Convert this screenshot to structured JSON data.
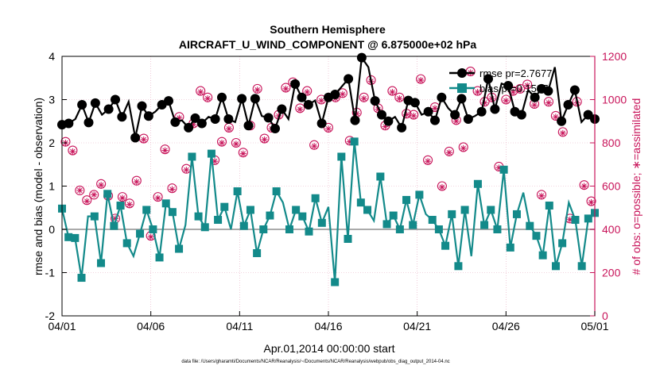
{
  "chart_data": {
    "type": "line",
    "title": "Southern Hemisphere",
    "subtitle": "AIRCRAFT_U_WIND_COMPONENT @ 6.875000e+02 hPa",
    "xlabel": "Apr.01,2014 00:00:00 start",
    "ylabel": "rmse and bias (model - observation)",
    "y2label": "# of obs: o=possible; ∗=assimilated",
    "footnote": "data file: /Users/gharamti/Documents/NCAR/Reanalysis/~/Documents/NCAR/Reanalysis/webpub/obs_diag_output_2014-04.nc",
    "xlim": [
      0,
      30
    ],
    "ylim": [
      -2,
      4
    ],
    "y2lim": [
      0,
      1200
    ],
    "x_ticks": [
      0,
      5,
      10,
      15,
      20,
      25,
      30
    ],
    "x_tick_labels": [
      "04/01",
      "04/06",
      "04/11",
      "04/16",
      "04/21",
      "04/26",
      "05/01"
    ],
    "y_ticks": [
      -2,
      -1,
      0,
      1,
      2,
      3,
      4
    ],
    "y2_ticks": [
      0,
      200,
      400,
      600,
      800,
      1000,
      1200
    ],
    "grid": true,
    "legend_position": "top-right",
    "colors": {
      "rmse": "#000000",
      "bias": "#138a8a",
      "obs": "#c8145a",
      "zero_line": "#aaaaaa",
      "grid": "#e6a9c0"
    },
    "series": [
      {
        "name": "rmse pr=2.7677",
        "axis": "left",
        "marker": "circle",
        "values": [
          2.42,
          2.45,
          2.55,
          2.88,
          2.47,
          2.92,
          2.65,
          2.78,
          3.0,
          2.6,
          2.95,
          2.12,
          2.85,
          2.62,
          2.72,
          2.88,
          2.97,
          2.48,
          2.52,
          2.35,
          2.57,
          2.45,
          2.6,
          2.55,
          3.05,
          2.55,
          2.48,
          3.02,
          2.4,
          3.02,
          2.62,
          2.58,
          2.33,
          2.78,
          2.55,
          3.36,
          3.05,
          2.88,
          2.98,
          2.45,
          3.05,
          3.12,
          3.3,
          3.48,
          2.52,
          3.97,
          3.75,
          2.97,
          2.65,
          2.5,
          2.6,
          2.35,
          2.98,
          2.93,
          2.65,
          2.72,
          2.52,
          3.05,
          2.8,
          2.65,
          3.02,
          2.55,
          2.62,
          2.72,
          3.48,
          2.78,
          3.37,
          3.32,
          2.72,
          2.65,
          3.22,
          3.05,
          3.25,
          3.2,
          3.75,
          2.5,
          2.88,
          3.22,
          2.48,
          2.65,
          2.55
        ],
        "marker_count": 61
      },
      {
        "name": "bias pr=0.1537",
        "axis": "left",
        "marker": "square",
        "values": [
          0.48,
          -0.18,
          -0.2,
          -1.12,
          0.3,
          0.3,
          -0.78,
          0.82,
          0.08,
          0.55,
          -0.32,
          -0.62,
          -0.1,
          0.45,
          0.0,
          -0.65,
          0.6,
          0.4,
          -0.45,
          0.1,
          1.68,
          0.3,
          0.05,
          1.75,
          0.22,
          0.52,
          0.0,
          0.88,
          0.08,
          0.45,
          -0.55,
          0.0,
          0.32,
          0.88,
          0.62,
          0.0,
          0.45,
          0.3,
          -0.05,
          0.72,
          0.15,
          0.52,
          -1.22,
          1.68,
          -0.22,
          2.03,
          0.62,
          0.45,
          0.2,
          1.22,
          0.12,
          0.32,
          0.0,
          0.68,
          0.1,
          0.8,
          0.35,
          0.22,
          0.0,
          -0.38,
          0.35,
          -0.85,
          0.45,
          -0.62,
          1.05,
          0.1,
          0.45,
          0.0,
          1.38,
          -0.42,
          0.35,
          0.85,
          0.08,
          -0.15,
          -0.6,
          0.55,
          -0.85,
          -0.32,
          0.62,
          0.22,
          -0.85,
          0.25,
          0.38
        ],
        "marker_count": 72
      },
      {
        "name": "possible",
        "axis": "right",
        "marker": "circle-open",
        "values": [
          805,
          765,
          580,
          535,
          560,
          610,
          555,
          450,
          550,
          520,
          625,
          820,
          370,
          550,
          770,
          590,
          920,
          680,
          890,
          1040,
          1010,
          720,
          805,
          870,
          800,
          755,
          880,
          1050,
          820,
          870,
          930,
          1055,
          1080,
          960,
          1040,
          790,
          1000,
          870,
          1010,
          1030,
          810,
          940,
          1010,
          1090,
          960,
          880,
          1040,
          1010,
          935,
          930,
          1095,
          720,
          965,
          600,
          760,
          905,
          780,
          1130,
          1040,
          990,
          1010,
          690,
          1000,
          1040,
          1050,
          1070,
          980,
          560,
          990,
          925,
          850,
          450,
          990,
          605,
          530
        ]
      },
      {
        "name": "assimilated",
        "axis": "right",
        "marker": "asterisk",
        "values": [
          800,
          760,
          580,
          530,
          560,
          605,
          550,
          450,
          545,
          515,
          620,
          815,
          365,
          545,
          765,
          585,
          915,
          675,
          885,
          1035,
          1005,
          715,
          800,
          865,
          795,
          750,
          875,
          1045,
          815,
          865,
          925,
          1050,
          1075,
          955,
          1035,
          785,
          995,
          865,
          1005,
          1025,
          805,
          935,
          1005,
          1085,
          955,
          875,
          1035,
          1005,
          930,
          925,
          1090,
          715,
          960,
          595,
          755,
          900,
          775,
          1125,
          1035,
          985,
          1005,
          685,
          995,
          1035,
          1045,
          1065,
          975,
          555,
          985,
          920,
          845,
          445,
          985,
          600,
          525
        ]
      }
    ]
  }
}
